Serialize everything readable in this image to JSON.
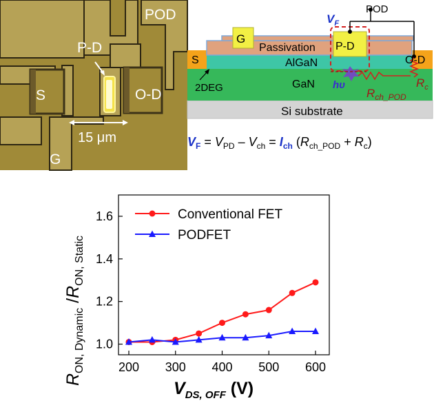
{
  "micrograph": {
    "labels": {
      "pod": "POD",
      "pd": "P-D",
      "s": "S",
      "od": "O-D",
      "g": "G",
      "scale": "15 μm"
    },
    "colors": {
      "background": "#a08a38",
      "metal": "#b6a256",
      "edge": "#2c2512",
      "emitter": "#f4e24a"
    }
  },
  "schematic": {
    "labels": {
      "vf": "V",
      "vf_sub": "F",
      "pod": "POD",
      "g": "G",
      "passivation": "Passivation",
      "pd": "P-D",
      "s": "S",
      "algan": "AlGaN",
      "od": "O-D",
      "twodeg": "2DEG",
      "gan": "GaN",
      "hv": "hυ",
      "rch": "R",
      "rch_sub": "ch_POD",
      "rc": "R",
      "rc_sub": "c",
      "si": "Si substrate"
    },
    "equation": {
      "vf": "V",
      "vf_sub": "F",
      "eq1": " = ",
      "vpd": "V",
      "vpd_sub": "PD",
      "minus": " – ",
      "vch": "V",
      "vch_sub": "ch",
      "eq2": " = ",
      "ich": "I",
      "ich_sub": "ch",
      "open": " (",
      "r1": "R",
      "r1_sub": "ch_POD",
      "plus": " + ",
      "r2": "R",
      "r2_sub": "c",
      "close": ")"
    },
    "colors": {
      "passivation": "#e0a27e",
      "algan": "#3ec6a6",
      "gan": "#36b85a",
      "si": "#d4d4d4",
      "contact": "#f5a31a",
      "gate": "#f2f044",
      "blue": "#1b33c8",
      "red": "#d42020",
      "darkred": "#a01818"
    }
  },
  "chart_data": {
    "type": "line",
    "x": [
      200,
      250,
      300,
      350,
      400,
      450,
      500,
      550,
      600
    ],
    "series": [
      {
        "name": "Conventional FET",
        "color": "#ff1a1a",
        "marker": "circle",
        "values": [
          1.01,
          1.01,
          1.02,
          1.05,
          1.1,
          1.14,
          1.16,
          1.24,
          1.29
        ]
      },
      {
        "name": "PODFET",
        "color": "#1a1aff",
        "marker": "triangle",
        "values": [
          1.01,
          1.02,
          1.01,
          1.02,
          1.03,
          1.03,
          1.04,
          1.06,
          1.06
        ]
      }
    ],
    "xlim": [
      200,
      600
    ],
    "ylim": [
      0.95,
      1.7
    ],
    "xticks": [
      "200",
      "300",
      "400",
      "500",
      "600"
    ],
    "yticks": [
      "1.0",
      "1.2",
      "1.4",
      "1.6"
    ],
    "xlabel": {
      "main": "V",
      "sub": "DS, OFF",
      "unit": " (V)"
    },
    "ylabel": {
      "r1": "R",
      "r1_sub": "ON, Dynamic",
      "slash": " /",
      "r2": "R",
      "r2_sub": "ON, Static"
    },
    "legend_position": "top-left",
    "grid": false
  }
}
